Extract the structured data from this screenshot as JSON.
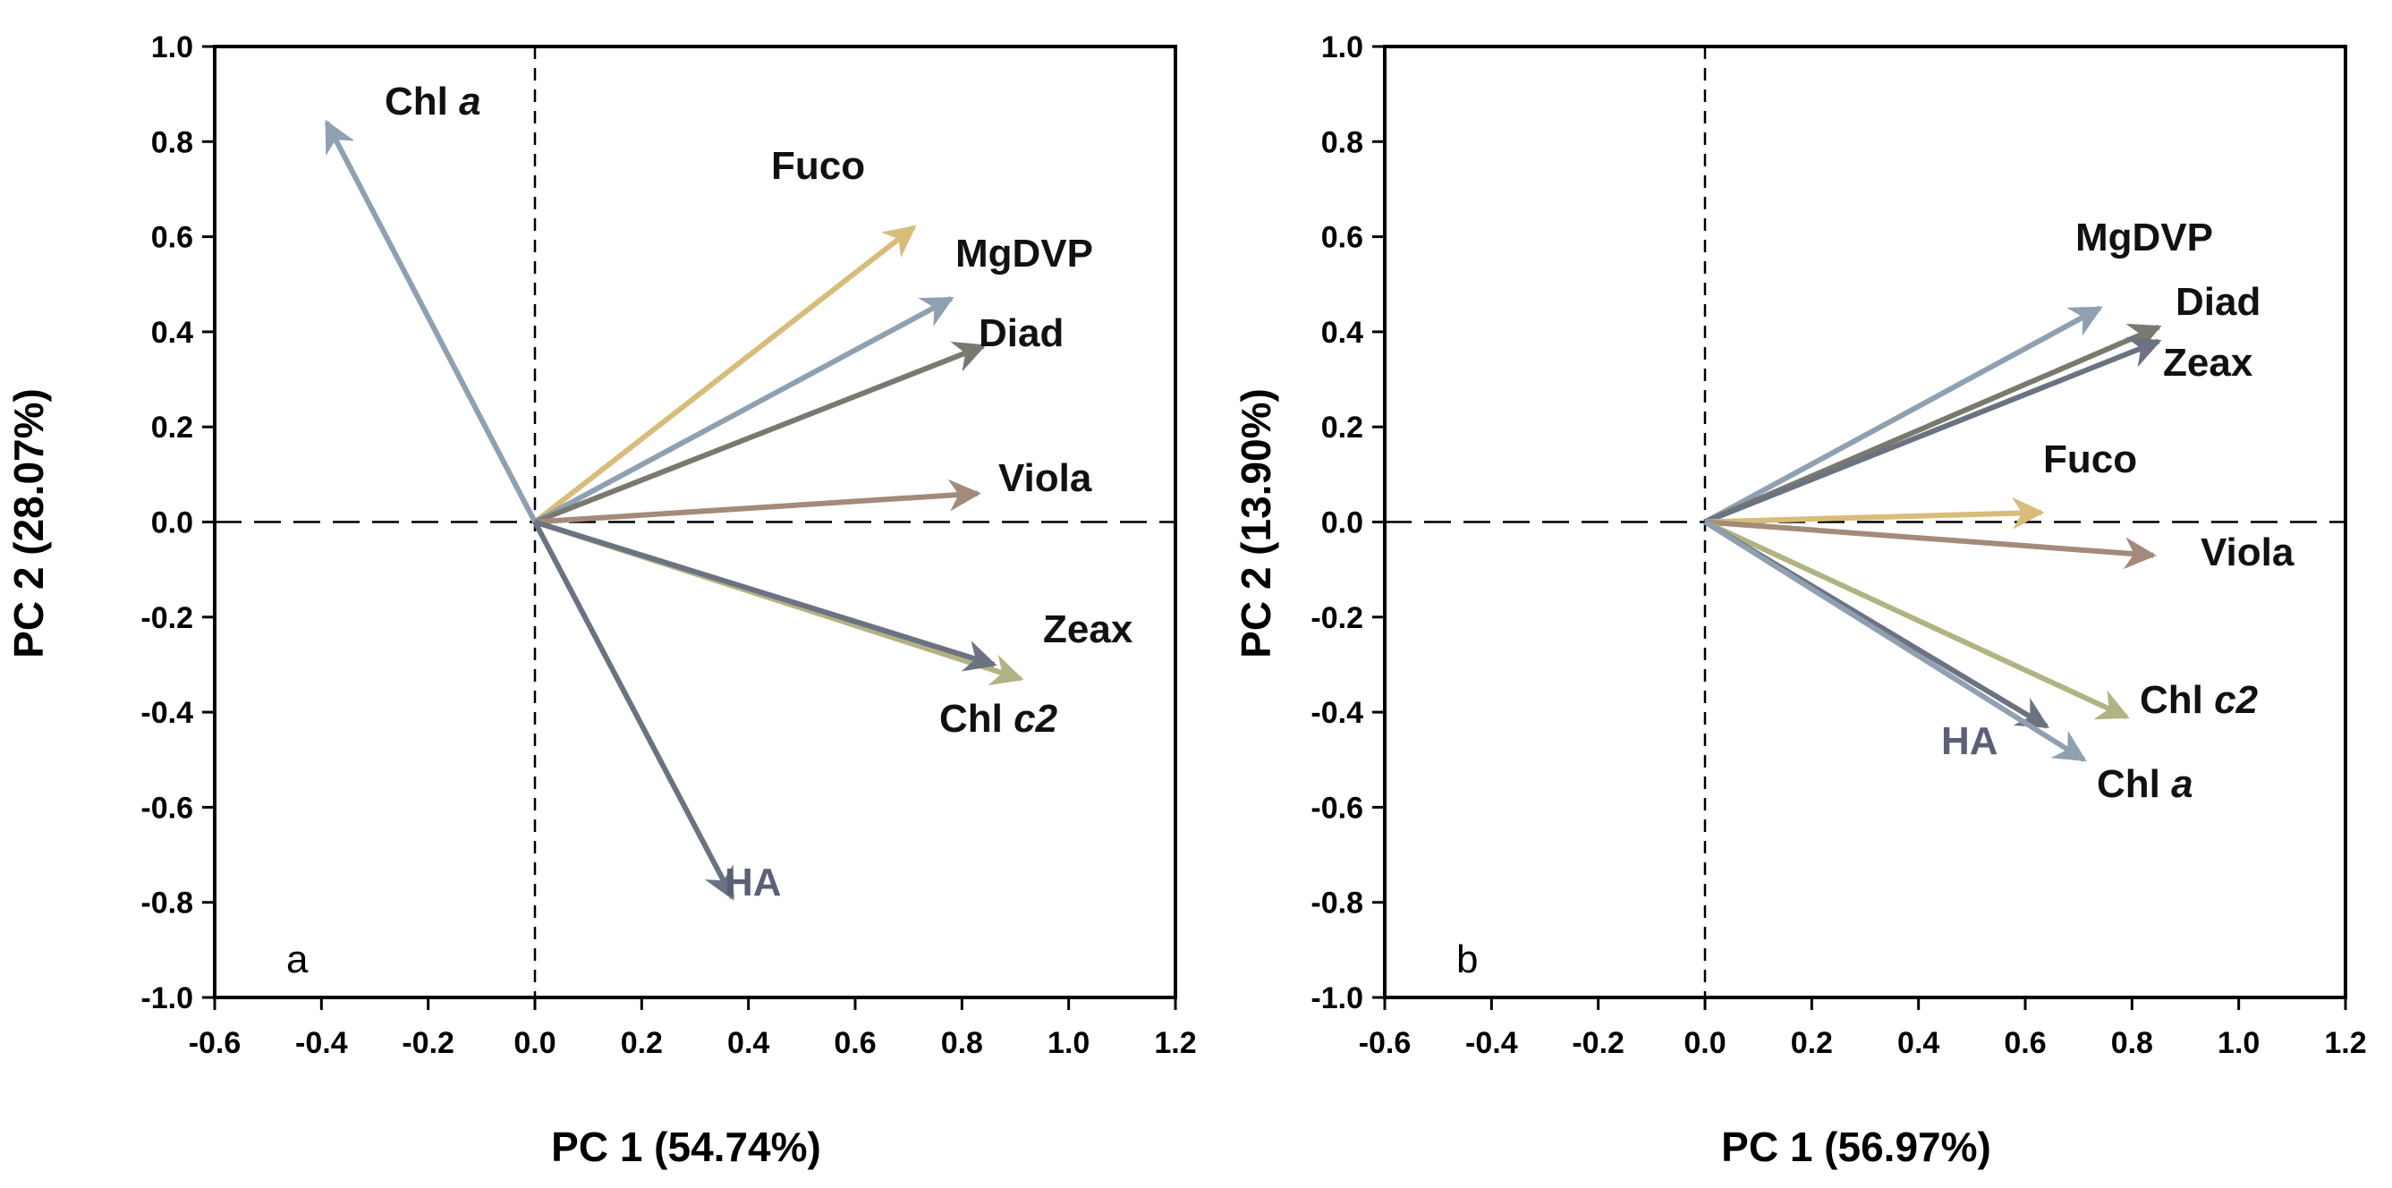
{
  "chart_data": [
    {
      "type": "biplot",
      "panel_label": "a",
      "xlabel": "PC 1 (54.74%)",
      "ylabel": "PC 2 (28.07%)",
      "xlim": [
        -0.6,
        1.2
      ],
      "ylim": [
        -1.0,
        1.0
      ],
      "xticks": [
        "-0.6",
        "-0.4",
        "-0.2",
        "0.0",
        "0.2",
        "0.4",
        "0.6",
        "0.8",
        "1.0",
        "1.2"
      ],
      "yticks": [
        "-1.0",
        "-0.8",
        "-0.6",
        "-0.4",
        "-0.2",
        "0.0",
        "0.2",
        "0.4",
        "0.6",
        "0.8",
        "1.0"
      ],
      "grid": false,
      "reference_lines": [
        "x = 0",
        "y = 0"
      ],
      "vectors": [
        {
          "label": "Chl",
          "label_italic": "a",
          "x": -0.39,
          "y": 0.84,
          "color": "#8fa0b0",
          "label_color": "#111111"
        },
        {
          "label": "Fuco",
          "label_italic": "",
          "x": 0.71,
          "y": 0.62,
          "color": "#d8bc7a",
          "label_color": "#111111"
        },
        {
          "label": "MgDVP",
          "label_italic": "",
          "x": 0.78,
          "y": 0.47,
          "color": "#8fa0b0",
          "label_color": "#111111"
        },
        {
          "label": "Diad",
          "label_italic": "",
          "x": 0.84,
          "y": 0.37,
          "color": "#7a7970",
          "label_color": "#111111"
        },
        {
          "label": "Viola",
          "label_italic": "",
          "x": 0.83,
          "y": 0.06,
          "color": "#a48a7a",
          "label_color": "#111111"
        },
        {
          "label": "Chl",
          "label_italic": "c2",
          "x": 0.91,
          "y": -0.33,
          "color": "#b2b283",
          "label_color": "#111111"
        },
        {
          "label": "Zeax",
          "label_italic": "",
          "x": 0.86,
          "y": -0.3,
          "color": "#6b7282",
          "label_color": "#111111"
        },
        {
          "label": "HA",
          "label_italic": "",
          "x": 0.37,
          "y": -0.79,
          "color": "#6b7282",
          "label_color": "#5b5f78"
        }
      ]
    },
    {
      "type": "biplot",
      "panel_label": "b",
      "xlabel": "PC 1 (56.97%)",
      "ylabel": "PC 2 (13.90%)",
      "xlim": [
        -0.6,
        1.2
      ],
      "ylim": [
        -1.0,
        1.0
      ],
      "xticks": [
        "-0.6",
        "-0.4",
        "-0.2",
        "0.0",
        "0.2",
        "0.4",
        "0.6",
        "0.8",
        "1.0",
        "1.2"
      ],
      "yticks": [
        "-1.0",
        "-0.8",
        "-0.6",
        "-0.4",
        "-0.2",
        "0.0",
        "0.2",
        "0.4",
        "0.6",
        "0.8",
        "1.0"
      ],
      "grid": false,
      "reference_lines": [
        "x = 0",
        "y = 0"
      ],
      "vectors": [
        {
          "label": "MgDVP",
          "label_italic": "",
          "x": 0.74,
          "y": 0.45,
          "color": "#8fa0b0",
          "label_color": "#111111"
        },
        {
          "label": "Diad",
          "label_italic": "",
          "x": 0.85,
          "y": 0.41,
          "color": "#7a7970",
          "label_color": "#111111"
        },
        {
          "label": "Zeax",
          "label_italic": "",
          "x": 0.85,
          "y": 0.38,
          "color": "#6b7282",
          "label_color": "#111111"
        },
        {
          "label": "Fuco",
          "label_italic": "",
          "x": 0.63,
          "y": 0.02,
          "color": "#d8bc7a",
          "label_color": "#111111"
        },
        {
          "label": "Viola",
          "label_italic": "",
          "x": 0.84,
          "y": -0.07,
          "color": "#a48a7a",
          "label_color": "#111111"
        },
        {
          "label": "Chl",
          "label_italic": "c2",
          "x": 0.79,
          "y": -0.41,
          "color": "#b2b283",
          "label_color": "#111111"
        },
        {
          "label": "HA",
          "label_italic": "",
          "x": 0.64,
          "y": -0.43,
          "color": "#6b7282",
          "label_color": "#5b5f78"
        },
        {
          "label": "Chl",
          "label_italic": "a",
          "x": 0.71,
          "y": -0.5,
          "color": "#8fa0b0",
          "label_color": "#111111"
        }
      ]
    }
  ]
}
